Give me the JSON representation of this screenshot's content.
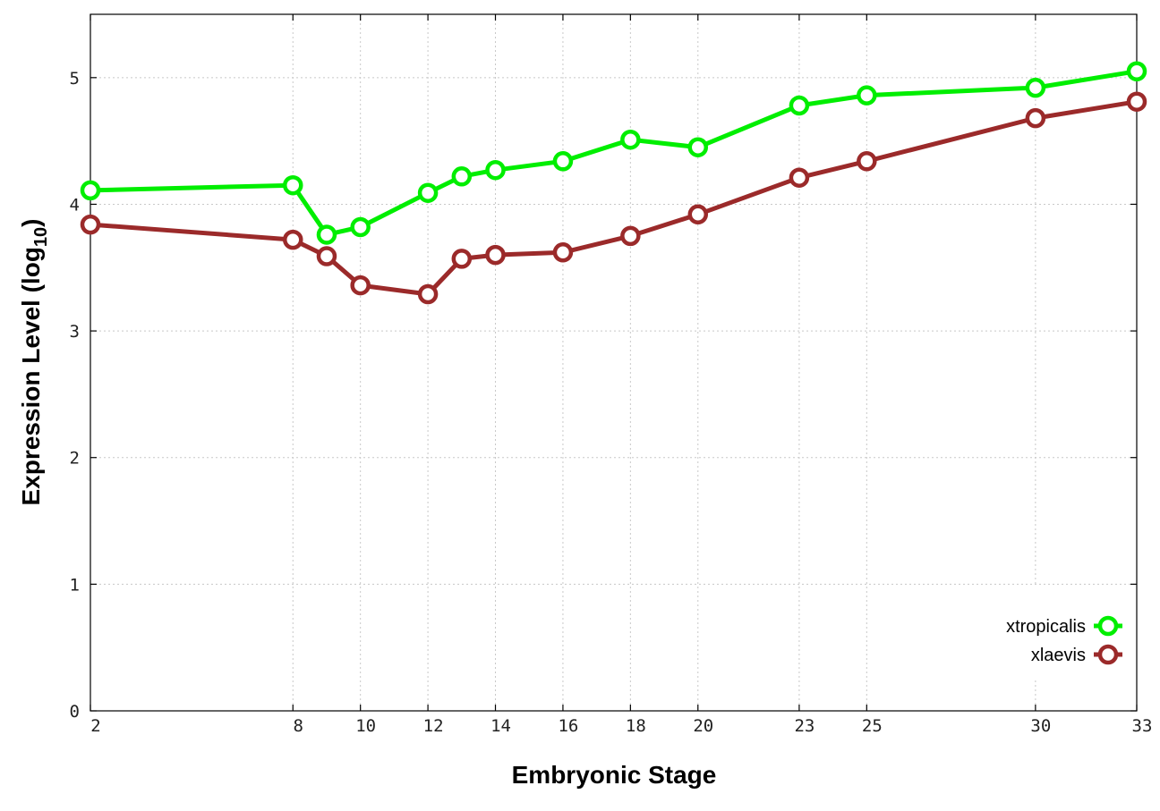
{
  "chart_data": {
    "type": "line",
    "xlabel": "Embryonic Stage",
    "ylabel": "Expression Level (log10)",
    "ylabel_main": "Expression Level (log",
    "ylabel_sub": "10",
    "ylabel_close": ")",
    "x_ticks": [
      2,
      8,
      10,
      12,
      14,
      16,
      18,
      20,
      23,
      25,
      30,
      33
    ],
    "y_ticks": [
      0,
      1,
      2,
      3,
      4,
      5
    ],
    "xlim": [
      2,
      33
    ],
    "ylim": [
      0,
      5.5
    ],
    "grid": true,
    "legend_position": "bottom-right",
    "x": [
      2,
      8,
      9,
      10,
      12,
      13,
      14,
      16,
      18,
      20,
      23,
      25,
      30,
      33
    ],
    "series": [
      {
        "name": "xtropicalis",
        "color": "#00ee00",
        "marker": "open-circle",
        "values": [
          4.11,
          4.15,
          3.76,
          3.82,
          4.09,
          4.22,
          4.27,
          4.34,
          4.51,
          4.45,
          4.78,
          4.86,
          4.92,
          5.05
        ]
      },
      {
        "name": "xlaevis",
        "color": "#9b2a2a",
        "marker": "open-circle",
        "values": [
          3.84,
          3.72,
          3.59,
          3.36,
          3.29,
          3.57,
          3.6,
          3.62,
          3.75,
          3.92,
          4.21,
          4.34,
          4.68,
          4.81
        ]
      }
    ]
  }
}
